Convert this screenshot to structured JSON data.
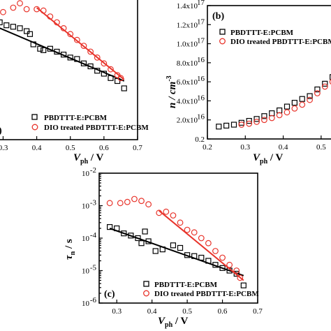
{
  "colors": {
    "black": "#000000",
    "red": "#e8332a"
  },
  "series_names": [
    "PBDTTT-E:PCBM",
    "DIO treated PBDTTT-E:PCBM"
  ],
  "chart_data": [
    {
      "id": "a",
      "type": "scatter",
      "panel_label": "",
      "xlabel": "V",
      "xlabel_sub": "ph",
      "xlabel_unit": " / V",
      "ylabel": "",
      "x_ticks": [
        "0.3",
        "0.4",
        "0.5",
        "0.6",
        "0.7"
      ],
      "x_tick_values": [
        0.3,
        0.4,
        0.5,
        0.6,
        0.7
      ],
      "xlim": [
        0.27,
        0.7
      ],
      "ylim": [
        0,
        1
      ],
      "legend": [
        "PBDTTT-E:PCBM",
        "DIO treated PBDTTT-E:PCBM"
      ],
      "series": [
        {
          "name": "PBDTTT-E:PCBM",
          "marker": "square",
          "color": "#000000",
          "x": [
            0.27,
            0.29,
            0.31,
            0.33,
            0.35,
            0.37,
            0.38,
            0.39,
            0.41,
            0.42,
            0.44,
            0.46,
            0.48,
            0.5,
            0.52,
            0.54,
            0.56,
            0.58,
            0.6,
            0.62,
            0.64,
            0.66
          ],
          "y": [
            0.81,
            0.8,
            0.78,
            0.77,
            0.76,
            0.74,
            0.72,
            0.65,
            0.62,
            0.61,
            0.62,
            0.6,
            0.58,
            0.56,
            0.55,
            0.52,
            0.5,
            0.47,
            0.45,
            0.42,
            0.4,
            0.35
          ],
          "fit": [
            [
              0.27,
              0.78
            ],
            [
              0.66,
              0.4
            ]
          ]
        },
        {
          "name": "DIO treated PBDTTT-E:PCBM",
          "marker": "circle",
          "color": "#e8332a",
          "x": [
            0.3,
            0.33,
            0.35,
            0.37,
            0.4,
            0.42,
            0.44,
            0.46,
            0.48,
            0.5,
            0.52,
            0.54,
            0.56,
            0.58,
            0.6,
            0.62,
            0.64,
            0.65
          ],
          "y": [
            0.87,
            0.9,
            0.93,
            0.89,
            0.89,
            0.88,
            0.84,
            0.8,
            0.76,
            0.72,
            0.68,
            0.64,
            0.6,
            0.56,
            0.52,
            0.48,
            0.44,
            0.42
          ],
          "fit": [
            [
              0.4,
              0.9
            ],
            [
              0.66,
              0.41
            ]
          ]
        }
      ]
    },
    {
      "id": "b",
      "type": "scatter",
      "panel_label": "(b)",
      "xlabel": "V",
      "xlabel_sub": "ph",
      "xlabel_unit": " / V",
      "ylabel": "n / cm",
      "ylabel_sup": "-3",
      "x_ticks": [
        "0.2",
        "0.3",
        "0.4",
        "0.5"
      ],
      "x_tick_values": [
        0.2,
        0.3,
        0.4,
        0.5
      ],
      "xlim": [
        0.2,
        0.55
      ],
      "y_ticks": [
        "0.2",
        "2.0x10",
        "4.0x10",
        "6.0x10",
        "8.0x10",
        "1.0x10",
        "1.2x10",
        "1.4x10"
      ],
      "y_tick_sups": [
        "",
        "16",
        "16",
        "16",
        "16",
        "17",
        "17",
        "17"
      ],
      "y_tick_values": [
        0,
        2e+16,
        4e+16,
        6e+16,
        8e+16,
        1e+17,
        1.2e+17,
        1.4e+17
      ],
      "ylim": [
        0,
        1.4e+17
      ],
      "legend": [
        "PBDTTT-E:PCBM",
        "DIO treated PBDTTT-E:PCBM"
      ],
      "series": [
        {
          "name": "PBDTTT-E:PCBM",
          "marker": "square",
          "color": "#000000",
          "x": [
            0.23,
            0.25,
            0.27,
            0.29,
            0.31,
            0.33,
            0.35,
            0.37,
            0.39,
            0.41,
            0.43,
            0.45,
            0.47,
            0.49,
            0.51,
            0.53,
            0.55
          ],
          "y": [
            1.3e+16,
            1.4e+16,
            1.5e+16,
            1.7e+16,
            1.9e+16,
            2.1e+16,
            2.4e+16,
            2.7e+16,
            3e+16,
            3.4e+16,
            3.8e+16,
            4.2e+16,
            4.5e+16,
            5.2e+16,
            5.8e+16,
            6.5e+16,
            6.9e+16
          ]
        },
        {
          "name": "DIO treated PBDTTT-E:PCBM",
          "marker": "circle",
          "color": "#e8332a",
          "x": [
            0.29,
            0.31,
            0.33,
            0.35,
            0.37,
            0.39,
            0.41,
            0.43,
            0.45,
            0.47,
            0.49,
            0.51,
            0.53,
            0.55
          ],
          "y": [
            1.5e+16,
            1.6e+16,
            1.8e+16,
            2e+16,
            2.2e+16,
            2.5e+16,
            2.8e+16,
            3.2e+16,
            3.6e+16,
            4.1e+16,
            4.8e+16,
            5.5e+16,
            6e+16,
            6.6e+16
          ]
        }
      ]
    },
    {
      "id": "c",
      "type": "scatter",
      "panel_label": "(c)",
      "xlabel": "V",
      "xlabel_sub": "ph",
      "xlabel_unit": " / V",
      "ylabel": "τ",
      "ylabel_sub": "n",
      "ylabel_unit": " / s",
      "y_scale": "log",
      "x_ticks": [
        "0.3",
        "0.4",
        "0.5",
        "0.6",
        "0.7"
      ],
      "x_tick_values": [
        0.3,
        0.4,
        0.5,
        0.6,
        0.7
      ],
      "xlim": [
        0.25,
        0.7
      ],
      "y_ticks": [
        "10",
        "10",
        "10",
        "10",
        "10"
      ],
      "y_tick_sups": [
        "-6",
        "-5",
        "-4",
        "-3",
        "-2"
      ],
      "y_tick_values": [
        1e-06,
        1e-05,
        0.0001,
        0.001,
        0.01
      ],
      "ylim": [
        1e-06,
        0.01
      ],
      "legend": [
        "PBDTTT-E:PCBM",
        "DIO treated PBDTTT-E:PCBM"
      ],
      "series": [
        {
          "name": "PBDTTT-E:PCBM",
          "marker": "square",
          "color": "#000000",
          "x": [
            0.28,
            0.3,
            0.32,
            0.34,
            0.36,
            0.38,
            0.37,
            0.39,
            0.41,
            0.43,
            0.46,
            0.48,
            0.5,
            0.52,
            0.54,
            0.56,
            0.58,
            0.6,
            0.62,
            0.64,
            0.66
          ],
          "y": [
            0.00022,
            0.0002,
            0.00014,
            0.00012,
            0.0001,
            0.00016,
            7e-05,
            8e-05,
            4e-05,
            4.5e-05,
            6e-05,
            5e-05,
            3e-05,
            2.8e-05,
            2.5e-05,
            2e-05,
            1.5e-05,
            1.2e-05,
            1e-05,
            8e-06,
            3.5e-06
          ],
          "fit": [
            [
              0.28,
              0.0002
            ],
            [
              0.66,
              7e-06
            ]
          ]
        },
        {
          "name": "DIO treated PBDTTT-E:PCBM",
          "marker": "circle",
          "color": "#e8332a",
          "x": [
            0.28,
            0.31,
            0.33,
            0.35,
            0.37,
            0.39,
            0.42,
            0.44,
            0.46,
            0.48,
            0.5,
            0.52,
            0.54,
            0.56,
            0.58,
            0.6,
            0.62,
            0.64,
            0.65
          ],
          "y": [
            0.0012,
            0.0012,
            0.0013,
            0.0016,
            0.0014,
            0.0011,
            0.0006,
            0.00065,
            0.0005,
            0.0003,
            0.00018,
            0.00015,
            0.0001,
            7e-05,
            4e-05,
            2.5e-05,
            1.5e-05,
            1e-05,
            6e-06
          ],
          "fit": [
            [
              0.42,
              0.0007
            ],
            [
              0.66,
              5e-06
            ]
          ]
        }
      ]
    }
  ]
}
